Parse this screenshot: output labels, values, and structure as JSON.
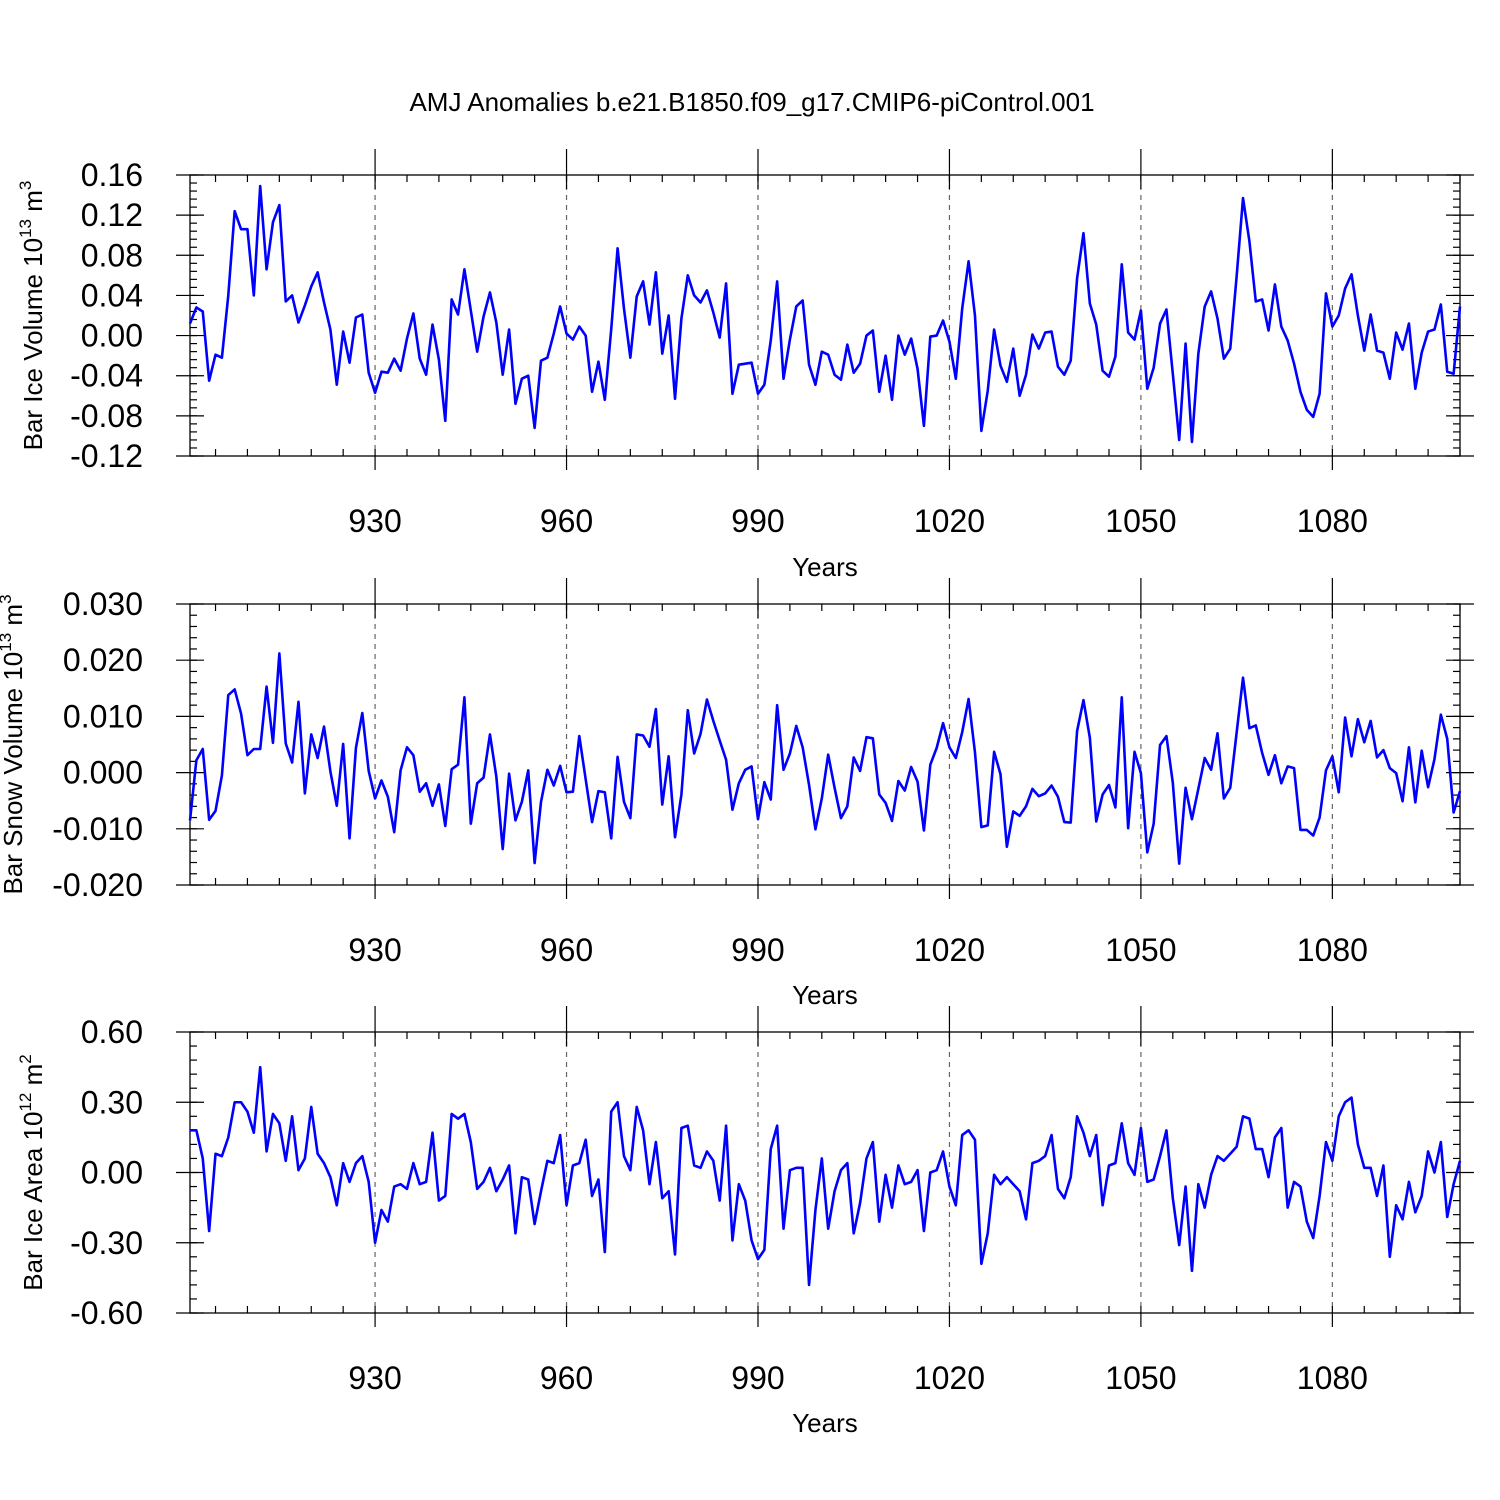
{
  "title": "AMJ Anomalies b.e21.B1850.f09_g17.CMIP6-piControl.001",
  "colors": {
    "series": "#0000ff",
    "axes": "#000000",
    "grid": "#666666",
    "background": "#ffffff"
  },
  "chart_data": [
    {
      "type": "line",
      "title": "AMJ Anomalies b.e21.B1850.f09_g17.CMIP6-piControl.001",
      "xlabel": "Years",
      "ylabel": {
        "text": "Bar Ice Volume 10",
        "exp1": "13",
        "unit": " m",
        "exp2": "3"
      },
      "x_start": 901,
      "x_step": 1,
      "xlim": [
        901,
        1100
      ],
      "ylim": [
        -0.12,
        0.16
      ],
      "xticks": [
        930,
        960,
        990,
        1020,
        1050,
        1080
      ],
      "xtick_labels": [
        "930",
        "960",
        "990",
        "1020",
        "1050",
        "1080"
      ],
      "yticks": [
        -0.12,
        -0.08,
        -0.04,
        0.0,
        0.04,
        0.08,
        0.12,
        0.16
      ],
      "ytick_labels": [
        "-0.12",
        "-0.08",
        "-0.04",
        "0.00",
        "0.04",
        "0.08",
        "0.12",
        "0.16"
      ],
      "ymin_step": 0.008,
      "grid": "dashed vertical at major x ticks",
      "values": [
        0.012,
        0.028,
        0.024,
        -0.045,
        -0.019,
        -0.022,
        0.04,
        0.124,
        0.106,
        0.106,
        0.04,
        0.149,
        0.066,
        0.113,
        0.13,
        0.034,
        0.04,
        0.013,
        0.03,
        0.049,
        0.063,
        0.033,
        0.006,
        -0.049,
        0.004,
        -0.027,
        0.018,
        0.021,
        -0.037,
        -0.057,
        -0.036,
        -0.037,
        -0.023,
        -0.035,
        -0.003,
        0.022,
        -0.023,
        -0.039,
        0.011,
        -0.024,
        -0.085,
        0.036,
        0.021,
        0.066,
        0.025,
        -0.016,
        0.019,
        0.043,
        0.013,
        -0.039,
        0.006,
        -0.068,
        -0.043,
        -0.04,
        -0.092,
        -0.025,
        -0.022,
        0.002,
        0.029,
        0.002,
        -0.004,
        0.009,
        0.0,
        -0.056,
        -0.026,
        -0.064,
        0.006,
        0.087,
        0.027,
        -0.022,
        0.039,
        0.054,
        0.011,
        0.063,
        -0.018,
        0.02,
        -0.063,
        0.017,
        0.06,
        0.04,
        0.033,
        0.045,
        0.023,
        -0.002,
        0.052,
        -0.058,
        -0.029,
        -0.028,
        -0.027,
        -0.058,
        -0.049,
        -0.005,
        0.054,
        -0.043,
        -0.004,
        0.029,
        0.035,
        -0.029,
        -0.049,
        -0.016,
        -0.019,
        -0.039,
        -0.044,
        -0.009,
        -0.037,
        -0.028,
        0.0,
        0.005,
        -0.056,
        -0.02,
        -0.064,
        0.0,
        -0.019,
        -0.003,
        -0.033,
        -0.09,
        -0.001,
        0.0,
        0.015,
        -0.006,
        -0.043,
        0.027,
        0.074,
        0.02,
        -0.095,
        -0.055,
        0.006,
        -0.03,
        -0.046,
        -0.013,
        -0.06,
        -0.039,
        0.001,
        -0.013,
        0.003,
        0.004,
        -0.031,
        -0.039,
        -0.025,
        0.057,
        0.102,
        0.032,
        0.011,
        -0.035,
        -0.041,
        -0.021,
        0.071,
        0.003,
        -0.004,
        0.025,
        -0.053,
        -0.032,
        0.012,
        0.026,
        -0.038,
        -0.104,
        -0.008,
        -0.106,
        -0.018,
        0.029,
        0.044,
        0.017,
        -0.023,
        -0.013,
        0.059,
        0.137,
        0.094,
        0.034,
        0.036,
        0.005,
        0.051,
        0.009,
        -0.005,
        -0.028,
        -0.056,
        -0.074,
        -0.081,
        -0.058,
        0.042,
        0.009,
        0.02,
        0.047,
        0.061,
        0.02,
        -0.015,
        0.021,
        -0.015,
        -0.017,
        -0.043,
        0.003,
        -0.014,
        0.012,
        -0.053,
        -0.017,
        0.004,
        0.006,
        0.031,
        -0.036,
        -0.038,
        0.029
      ]
    },
    {
      "type": "line",
      "xlabel": "Years",
      "ylabel": {
        "text": "Bar Snow Volume 10",
        "exp1": "13",
        "unit": " m",
        "exp2": "3"
      },
      "x_start": 901,
      "x_step": 1,
      "xlim": [
        901,
        1100
      ],
      "ylim": [
        -0.02,
        0.03
      ],
      "xticks": [
        930,
        960,
        990,
        1020,
        1050,
        1080
      ],
      "xtick_labels": [
        "930",
        "960",
        "990",
        "1020",
        "1050",
        "1080"
      ],
      "yticks": [
        -0.02,
        -0.01,
        0.0,
        0.01,
        0.02,
        0.03
      ],
      "ytick_labels": [
        "-0.020",
        "-0.010",
        "0.000",
        "0.010",
        "0.020",
        "0.030"
      ],
      "ymin_step": 0.002,
      "grid": "dashed vertical at major x ticks",
      "values": [
        -0.0085,
        0.0022,
        0.0042,
        -0.0084,
        -0.0068,
        -0.0005,
        0.0138,
        0.0148,
        0.0105,
        0.0031,
        0.0042,
        0.0042,
        0.0153,
        0.0053,
        0.0212,
        0.0052,
        0.0018,
        0.0126,
        -0.0037,
        0.0068,
        0.0026,
        0.0082,
        0.0002,
        -0.0059,
        0.0051,
        -0.0117,
        0.0044,
        0.0106,
        0.0003,
        -0.0046,
        -0.0014,
        -0.0043,
        -0.0106,
        0.0004,
        0.0045,
        0.0031,
        -0.0034,
        -0.0019,
        -0.0059,
        -0.0021,
        -0.0095,
        0.0006,
        0.0014,
        0.0134,
        -0.0091,
        -0.0019,
        -0.0009,
        0.0068,
        -0.0007,
        -0.0136,
        -0.0002,
        -0.0085,
        -0.0052,
        0.0004,
        -0.0161,
        -0.0052,
        0.0005,
        -0.0023,
        0.0012,
        -0.0035,
        -0.0034,
        0.0065,
        -0.0012,
        -0.0088,
        -0.0033,
        -0.0035,
        -0.0117,
        0.0028,
        -0.0052,
        -0.0081,
        0.0068,
        0.0066,
        0.0046,
        0.0113,
        -0.0057,
        0.0029,
        -0.0115,
        -0.0039,
        0.0111,
        0.0034,
        0.0069,
        0.013,
        0.0092,
        0.0057,
        0.0023,
        -0.0066,
        -0.0019,
        0.0005,
        0.0011,
        -0.0083,
        -0.0017,
        -0.0048,
        0.012,
        0.0005,
        0.0034,
        0.0083,
        0.0045,
        -0.0022,
        -0.0101,
        -0.0046,
        0.0032,
        -0.0027,
        -0.0081,
        -0.006,
        0.0027,
        0.0003,
        0.0063,
        0.0061,
        -0.0039,
        -0.0054,
        -0.0086,
        -0.0015,
        -0.0032,
        0.001,
        -0.0016,
        -0.0103,
        0.0014,
        0.0044,
        0.0088,
        0.0045,
        0.0026,
        0.0072,
        0.0131,
        0.0036,
        -0.0097,
        -0.0094,
        0.0037,
        -0.0003,
        -0.0132,
        -0.0069,
        -0.0077,
        -0.006,
        -0.0029,
        -0.0042,
        -0.0037,
        -0.0023,
        -0.0043,
        -0.0088,
        -0.0089,
        0.0074,
        0.0129,
        0.0062,
        -0.0087,
        -0.0039,
        -0.0022,
        -0.0062,
        0.0134,
        -0.0099,
        0.0037,
        -0.0001,
        -0.0142,
        -0.0091,
        0.0049,
        0.0065,
        -0.0018,
        -0.0162,
        -0.0027,
        -0.0083,
        -0.0029,
        0.0026,
        0.0005,
        0.007,
        -0.0046,
        -0.0027,
        0.0071,
        0.0169,
        0.0079,
        0.0084,
        0.0035,
        -0.0004,
        0.0031,
        -0.0019,
        0.0011,
        0.0008,
        -0.0102,
        -0.0102,
        -0.0112,
        -0.008,
        0.0004,
        0.0029,
        -0.0035,
        0.0098,
        0.0029,
        0.0095,
        0.0054,
        0.0092,
        0.0027,
        0.004,
        0.0008,
        -0.0001,
        -0.0051,
        0.0045,
        -0.0053,
        0.0039,
        -0.0026,
        0.0024,
        0.0103,
        0.006,
        -0.0071,
        -0.0033
      ]
    },
    {
      "type": "line",
      "xlabel": "Years",
      "ylabel": {
        "text": "Bar Ice Area 10",
        "exp1": "12",
        "unit": " m",
        "exp2": "2"
      },
      "x_start": 901,
      "x_step": 1,
      "xlim": [
        901,
        1100
      ],
      "ylim": [
        -0.6,
        0.6
      ],
      "xticks": [
        930,
        960,
        990,
        1020,
        1050,
        1080
      ],
      "xtick_labels": [
        "930",
        "960",
        "990",
        "1020",
        "1050",
        "1080"
      ],
      "yticks": [
        -0.6,
        -0.3,
        0.0,
        0.3,
        0.6
      ],
      "ytick_labels": [
        "-0.60",
        "-0.30",
        "0.00",
        "0.30",
        "0.60"
      ],
      "ymin_step": 0.06,
      "grid": "dashed vertical at major x ticks",
      "values": [
        0.18,
        0.18,
        0.06,
        -0.25,
        0.08,
        0.07,
        0.15,
        0.3,
        0.3,
        0.26,
        0.17,
        0.45,
        0.09,
        0.25,
        0.21,
        0.05,
        0.24,
        0.01,
        0.06,
        0.28,
        0.08,
        0.04,
        -0.02,
        -0.14,
        0.04,
        -0.04,
        0.04,
        0.07,
        -0.04,
        -0.3,
        -0.16,
        -0.21,
        -0.06,
        -0.05,
        -0.07,
        0.04,
        -0.05,
        -0.04,
        0.17,
        -0.12,
        -0.1,
        0.25,
        0.23,
        0.25,
        0.13,
        -0.07,
        -0.04,
        0.02,
        -0.08,
        -0.03,
        0.03,
        -0.26,
        -0.02,
        -0.03,
        -0.22,
        -0.08,
        0.05,
        0.04,
        0.16,
        -0.14,
        0.03,
        0.04,
        0.14,
        -0.1,
        -0.03,
        -0.34,
        0.26,
        0.3,
        0.07,
        0.01,
        0.28,
        0.18,
        -0.05,
        0.13,
        -0.11,
        -0.08,
        -0.35,
        0.19,
        0.2,
        0.03,
        0.02,
        0.09,
        0.05,
        -0.12,
        0.2,
        -0.29,
        -0.05,
        -0.12,
        -0.29,
        -0.37,
        -0.33,
        0.1,
        0.2,
        -0.24,
        0.01,
        0.02,
        0.02,
        -0.48,
        -0.16,
        0.06,
        -0.24,
        -0.08,
        0.01,
        0.04,
        -0.26,
        -0.13,
        0.06,
        0.13,
        -0.21,
        -0.01,
        -0.15,
        0.03,
        -0.05,
        -0.04,
        0.01,
        -0.25,
        0.0,
        0.01,
        0.09,
        -0.06,
        -0.14,
        0.16,
        0.18,
        0.14,
        -0.39,
        -0.26,
        -0.01,
        -0.05,
        -0.02,
        -0.05,
        -0.08,
        -0.2,
        0.04,
        0.05,
        0.07,
        0.16,
        -0.07,
        -0.11,
        -0.02,
        0.24,
        0.17,
        0.07,
        0.16,
        -0.14,
        0.03,
        0.04,
        0.21,
        0.04,
        -0.01,
        0.19,
        -0.04,
        -0.03,
        0.07,
        0.18,
        -0.11,
        -0.31,
        -0.06,
        -0.42,
        -0.05,
        -0.15,
        -0.01,
        0.07,
        0.05,
        0.08,
        0.11,
        0.24,
        0.23,
        0.1,
        0.1,
        -0.02,
        0.15,
        0.19,
        -0.15,
        -0.04,
        -0.06,
        -0.21,
        -0.28,
        -0.1,
        0.13,
        0.05,
        0.24,
        0.3,
        0.32,
        0.12,
        0.02,
        0.02,
        -0.1,
        0.03,
        -0.36,
        -0.14,
        -0.2,
        -0.04,
        -0.17,
        -0.1,
        0.09,
        0.0,
        0.13,
        -0.19,
        -0.05,
        0.05
      ]
    }
  ]
}
